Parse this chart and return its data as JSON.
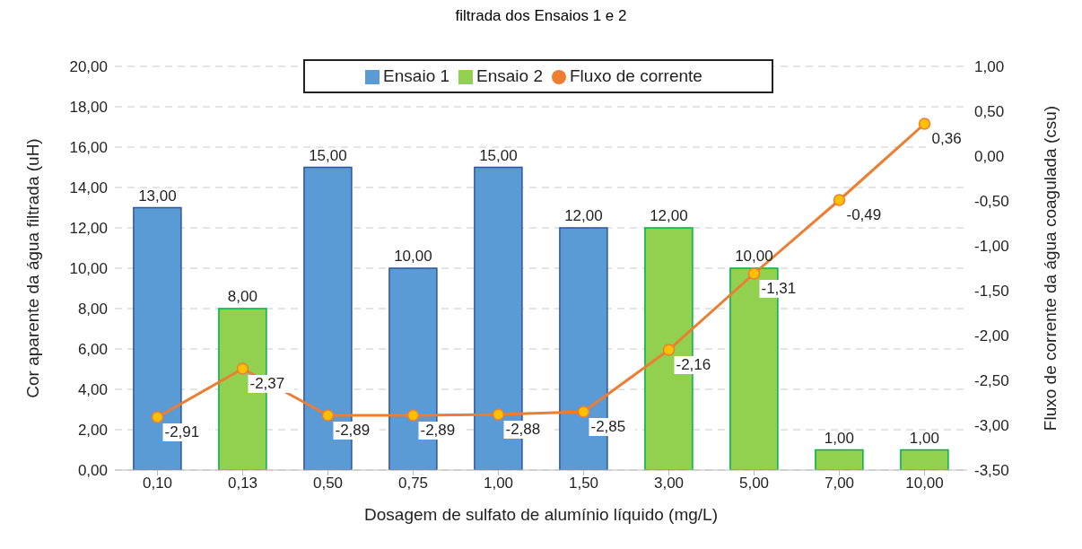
{
  "chart_data": {
    "type": "bar",
    "title": "filtrada dos Ensaios 1 e 2",
    "xlabel": "Dosagem de sulfato de alumínio líquido (mg/L)",
    "ylabel": "Cor aparente da água filtrada (uH)",
    "y2label": "Fluxo de corrente da água coagulada (csu)",
    "categories": [
      "0,10",
      "0,13",
      "0,50",
      "0,75",
      "1,00",
      "1,50",
      "3,00",
      "5,00",
      "7,00",
      "10,00"
    ],
    "stacked": true,
    "series": [
      {
        "name": "Ensaio 1",
        "color": "#5b9bd5",
        "values": [
          13,
          null,
          15,
          10,
          15,
          12,
          null,
          null,
          null,
          null
        ],
        "value_labels": [
          "13,00",
          null,
          "15,00",
          "10,00",
          "15,00",
          "12,00",
          null,
          null,
          null,
          null
        ]
      },
      {
        "name": "Ensaio 2",
        "color": "#92d050",
        "values": [
          null,
          8,
          null,
          null,
          null,
          null,
          12,
          10,
          1,
          1
        ],
        "value_labels": [
          null,
          "8,00",
          null,
          null,
          null,
          null,
          "12,00",
          "10,00",
          "1,00",
          "1,00"
        ]
      },
      {
        "name": "Fluxo de corrente",
        "type": "line",
        "axis": "y2",
        "color": "#ed7d31",
        "marker": "circle",
        "values": [
          -2.91,
          -2.37,
          -2.89,
          -2.89,
          -2.88,
          -2.85,
          -2.16,
          -1.31,
          -0.49,
          0.36
        ],
        "value_labels": [
          "-2,91",
          "-2,37",
          "-2,89",
          "-2,89",
          "-2,88",
          "-2,85",
          "-2,16",
          "-1,31",
          "-0,49",
          "0,36"
        ]
      }
    ],
    "ylim": [
      0,
      20
    ],
    "yticks": [
      {
        "value": 0,
        "label": "0,00"
      },
      {
        "value": 2,
        "label": "2,00"
      },
      {
        "value": 4,
        "label": "4,00"
      },
      {
        "value": 6,
        "label": "6,00"
      },
      {
        "value": 8,
        "label": "8,00"
      },
      {
        "value": 10,
        "label": "10,00"
      },
      {
        "value": 12,
        "label": "12,00"
      },
      {
        "value": 14,
        "label": "14,00"
      },
      {
        "value": 16,
        "label": "16,00"
      },
      {
        "value": 18,
        "label": "18,00"
      },
      {
        "value": 20,
        "label": "20,00"
      }
    ],
    "y2lim": [
      -3.5,
      1
    ],
    "y2ticks": [
      {
        "value": -3.5,
        "label": "-3,50"
      },
      {
        "value": -3,
        "label": "-3,00"
      },
      {
        "value": -2.5,
        "label": "-2,50"
      },
      {
        "value": -2,
        "label": "-2,00"
      },
      {
        "value": -1.5,
        "label": "-1,50"
      },
      {
        "value": -1,
        "label": "-1,00"
      },
      {
        "value": -0.5,
        "label": "-0,50"
      },
      {
        "value": 0,
        "label": "0,00"
      },
      {
        "value": 0.5,
        "label": "0,50"
      },
      {
        "value": 1,
        "label": "1,00"
      }
    ],
    "grid": "y",
    "legend": "top"
  }
}
